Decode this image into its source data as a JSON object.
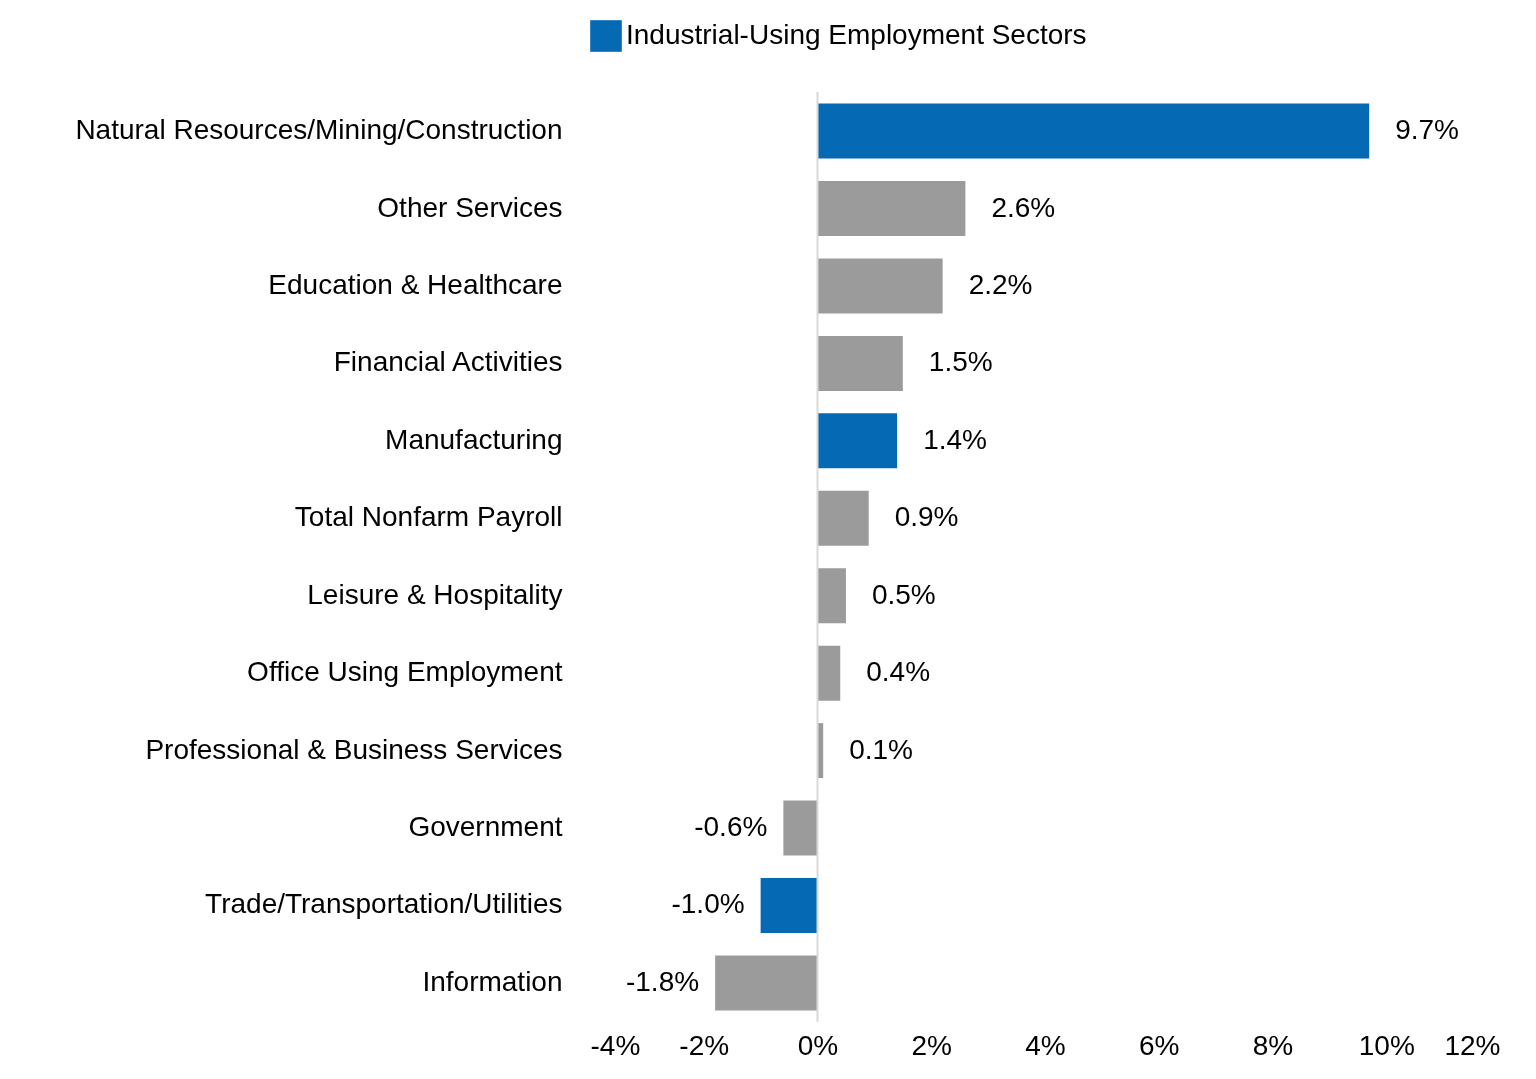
{
  "chart_data": {
    "type": "bar",
    "orientation": "horizontal",
    "stacked": true,
    "categories": [
      "Natural Resources/Mining/Construction",
      "Other Services",
      "Education & Healthcare",
      "Financial Activities",
      "Manufacturing",
      "Total Nonfarm Payroll",
      "Leisure & Hospitality",
      "Office Using Employment",
      "Professional & Business Services",
      "Government",
      "Trade/Transportation/Utilities",
      "Information"
    ],
    "series": [
      {
        "name": "Industrial-Using Employment Sectors",
        "color": "#0569b4",
        "values": [
          9.7,
          null,
          null,
          null,
          1.4,
          null,
          null,
          null,
          null,
          null,
          -1.0,
          null
        ],
        "value_labels": [
          "9.7%",
          null,
          null,
          null,
          "1.4%",
          null,
          null,
          null,
          null,
          null,
          "-1.0%",
          null
        ]
      },
      {
        "color": "#9b9b9b",
        "values": [
          null,
          2.6,
          2.2,
          1.5,
          null,
          0.9,
          0.5,
          0.4,
          0.1,
          -0.6,
          null,
          -1.8
        ],
        "value_labels": [
          null,
          "2.6%",
          "2.2%",
          "1.5%",
          null,
          "0.9%",
          "0.5%",
          "0.4%",
          "0.1%",
          "-0.6%",
          null,
          "-1.8%"
        ]
      }
    ],
    "xlim": [
      -4,
      12
    ],
    "xticks": [
      {
        "value": -4,
        "label": "-4%"
      },
      {
        "value": -2,
        "label": "-2%"
      },
      {
        "value": 0,
        "label": "0%"
      },
      {
        "value": 2,
        "label": "2%"
      },
      {
        "value": 4,
        "label": "4%"
      },
      {
        "value": 6,
        "label": "6%"
      },
      {
        "value": 8,
        "label": "8%"
      },
      {
        "value": 10,
        "label": "10%"
      },
      {
        "value": 12,
        "label": "12%"
      }
    ],
    "ref_lines": [
      {
        "axis": "x",
        "value": 0,
        "color": "#d9d9d9"
      }
    ],
    "grid": false,
    "legend": "top"
  }
}
